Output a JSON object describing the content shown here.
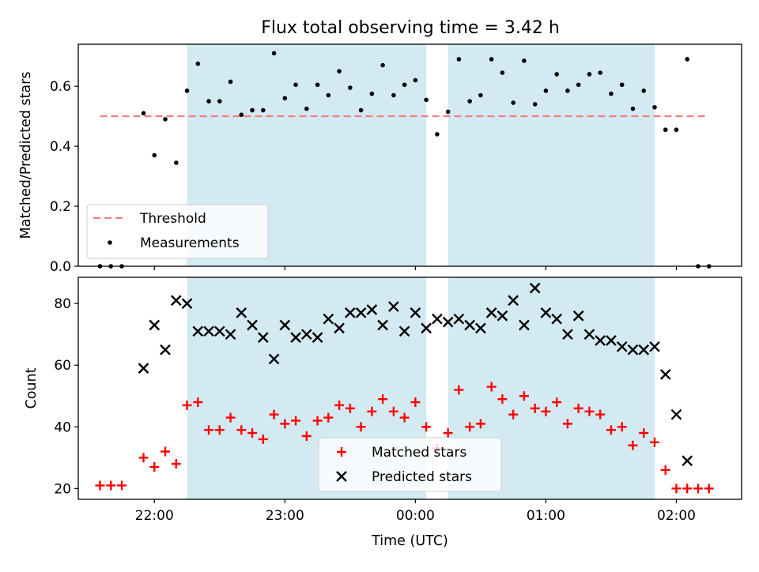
{
  "title": "Flux total observing time = 3.42 h",
  "colors": {
    "shade": "#add8e6",
    "threshold": "#f08080",
    "measurement": "#000000",
    "matched": "#ff0000",
    "predicted": "#000000"
  },
  "chart_data": [
    {
      "type": "scatter",
      "panel": "top",
      "ylabel": "Matched/Predicted stars",
      "xlabel": "",
      "ylim": [
        0,
        0.74
      ],
      "xlim": [
        "21:25",
        "02:30"
      ],
      "yticks": [
        0.0,
        0.2,
        0.4,
        0.6
      ],
      "ytick_labels": [
        "0.0",
        "0.2",
        "0.4",
        "0.6"
      ],
      "shaded_intervals": [
        [
          "22:15",
          "00:05"
        ],
        [
          "00:15",
          "01:50"
        ]
      ],
      "threshold": {
        "name": "Threshold",
        "value": 0.5,
        "x": [
          "21:35",
          "02:15"
        ],
        "style": "dashed"
      },
      "legend": {
        "position": "lower-left",
        "entries": [
          "Threshold",
          "Measurements"
        ]
      },
      "series": [
        {
          "name": "Measurements",
          "marker": "dot",
          "points": [
            [
              "21:35",
              0.0
            ],
            [
              "21:40",
              0.0
            ],
            [
              "21:45",
              0.0
            ],
            [
              "21:55",
              0.51
            ],
            [
              "22:00",
              0.37
            ],
            [
              "22:05",
              0.49
            ],
            [
              "22:10",
              0.345
            ],
            [
              "22:15",
              0.585
            ],
            [
              "22:20",
              0.675
            ],
            [
              "22:25",
              0.55
            ],
            [
              "22:30",
              0.55
            ],
            [
              "22:35",
              0.615
            ],
            [
              "22:40",
              0.505
            ],
            [
              "22:45",
              0.52
            ],
            [
              "22:50",
              0.52
            ],
            [
              "22:55",
              0.71
            ],
            [
              "23:00",
              0.56
            ],
            [
              "23:05",
              0.605
            ],
            [
              "23:10",
              0.525
            ],
            [
              "23:15",
              0.605
            ],
            [
              "23:20",
              0.57
            ],
            [
              "23:25",
              0.65
            ],
            [
              "23:30",
              0.595
            ],
            [
              "23:35",
              0.52
            ],
            [
              "23:40",
              0.575
            ],
            [
              "23:45",
              0.67
            ],
            [
              "23:50",
              0.57
            ],
            [
              "23:55",
              0.605
            ],
            [
              "00:00",
              0.62
            ],
            [
              "00:05",
              0.555
            ],
            [
              "00:10",
              0.44
            ],
            [
              "00:15",
              0.515
            ],
            [
              "00:20",
              0.69
            ],
            [
              "00:25",
              0.55
            ],
            [
              "00:30",
              0.57
            ],
            [
              "00:35",
              0.69
            ],
            [
              "00:40",
              0.645
            ],
            [
              "00:45",
              0.545
            ],
            [
              "00:50",
              0.685
            ],
            [
              "00:55",
              0.54
            ],
            [
              "01:00",
              0.585
            ],
            [
              "01:05",
              0.64
            ],
            [
              "01:10",
              0.585
            ],
            [
              "01:15",
              0.605
            ],
            [
              "01:20",
              0.64
            ],
            [
              "01:25",
              0.645
            ],
            [
              "01:30",
              0.575
            ],
            [
              "01:35",
              0.605
            ],
            [
              "01:40",
              0.525
            ],
            [
              "01:45",
              0.585
            ],
            [
              "01:50",
              0.53
            ],
            [
              "01:55",
              0.455
            ],
            [
              "02:00",
              0.455
            ],
            [
              "02:05",
              0.69
            ],
            [
              "02:10",
              0.0
            ],
            [
              "02:15",
              0.0
            ]
          ]
        }
      ]
    },
    {
      "type": "scatter",
      "panel": "bottom",
      "ylabel": "Count",
      "xlabel": "Time (UTC)",
      "ylim": [
        16.5,
        88.5
      ],
      "xlim": [
        "21:25",
        "02:30"
      ],
      "yticks": [
        20,
        40,
        60,
        80
      ],
      "ytick_labels": [
        "20",
        "40",
        "60",
        "80"
      ],
      "xticks": [
        "22:00",
        "23:00",
        "00:00",
        "01:00",
        "02:00"
      ],
      "xtick_labels": [
        "22:00",
        "23:00",
        "00:00",
        "01:00",
        "02:00"
      ],
      "shaded_intervals": [
        [
          "22:15",
          "00:05"
        ],
        [
          "00:15",
          "01:50"
        ]
      ],
      "legend": {
        "position": "lower-center",
        "entries": [
          "Matched stars",
          "Predicted stars"
        ]
      },
      "series": [
        {
          "name": "Matched stars",
          "marker": "plus",
          "points": [
            [
              "21:35",
              21
            ],
            [
              "21:40",
              21
            ],
            [
              "21:45",
              21
            ],
            [
              "21:55",
              30
            ],
            [
              "22:00",
              27
            ],
            [
              "22:05",
              32
            ],
            [
              "22:10",
              28
            ],
            [
              "22:15",
              47
            ],
            [
              "22:20",
              48
            ],
            [
              "22:25",
              39
            ],
            [
              "22:30",
              39
            ],
            [
              "22:35",
              43
            ],
            [
              "22:40",
              39
            ],
            [
              "22:45",
              38
            ],
            [
              "22:50",
              36
            ],
            [
              "22:55",
              44
            ],
            [
              "23:00",
              41
            ],
            [
              "23:05",
              42
            ],
            [
              "23:10",
              37
            ],
            [
              "23:15",
              42
            ],
            [
              "23:20",
              43
            ],
            [
              "23:25",
              47
            ],
            [
              "23:30",
              46
            ],
            [
              "23:35",
              40
            ],
            [
              "23:40",
              45
            ],
            [
              "23:45",
              49
            ],
            [
              "23:50",
              45
            ],
            [
              "23:55",
              43
            ],
            [
              "00:00",
              48
            ],
            [
              "00:05",
              40
            ],
            [
              "00:10",
              33
            ],
            [
              "00:15",
              38
            ],
            [
              "00:20",
              52
            ],
            [
              "00:25",
              40
            ],
            [
              "00:30",
              41
            ],
            [
              "00:35",
              53
            ],
            [
              "00:40",
              49
            ],
            [
              "00:45",
              44
            ],
            [
              "00:50",
              50
            ],
            [
              "00:55",
              46
            ],
            [
              "01:00",
              45
            ],
            [
              "01:05",
              48
            ],
            [
              "01:10",
              41
            ],
            [
              "01:15",
              46
            ],
            [
              "01:20",
              45
            ],
            [
              "01:25",
              44
            ],
            [
              "01:30",
              39
            ],
            [
              "01:35",
              40
            ],
            [
              "01:40",
              34
            ],
            [
              "01:45",
              38
            ],
            [
              "01:50",
              35
            ],
            [
              "01:55",
              26
            ],
            [
              "02:00",
              20
            ],
            [
              "02:05",
              20
            ],
            [
              "02:10",
              20
            ],
            [
              "02:15",
              20
            ]
          ]
        },
        {
          "name": "Predicted stars",
          "marker": "x",
          "points": [
            [
              "21:55",
              59
            ],
            [
              "22:00",
              73
            ],
            [
              "22:05",
              65
            ],
            [
              "22:10",
              81
            ],
            [
              "22:15",
              80
            ],
            [
              "22:20",
              71
            ],
            [
              "22:25",
              71
            ],
            [
              "22:30",
              71
            ],
            [
              "22:35",
              70
            ],
            [
              "22:40",
              77
            ],
            [
              "22:45",
              73
            ],
            [
              "22:50",
              69
            ],
            [
              "22:55",
              62
            ],
            [
              "23:00",
              73
            ],
            [
              "23:05",
              69
            ],
            [
              "23:10",
              70
            ],
            [
              "23:15",
              69
            ],
            [
              "23:20",
              75
            ],
            [
              "23:25",
              72
            ],
            [
              "23:30",
              77
            ],
            [
              "23:35",
              77
            ],
            [
              "23:40",
              78
            ],
            [
              "23:45",
              73
            ],
            [
              "23:50",
              79
            ],
            [
              "23:55",
              71
            ],
            [
              "00:00",
              77
            ],
            [
              "00:05",
              72
            ],
            [
              "00:10",
              75
            ],
            [
              "00:15",
              74
            ],
            [
              "00:20",
              75
            ],
            [
              "00:25",
              73
            ],
            [
              "00:30",
              72
            ],
            [
              "00:35",
              77
            ],
            [
              "00:40",
              76
            ],
            [
              "00:45",
              81
            ],
            [
              "00:50",
              73
            ],
            [
              "00:55",
              85
            ],
            [
              "01:00",
              77
            ],
            [
              "01:05",
              75
            ],
            [
              "01:10",
              70
            ],
            [
              "01:15",
              76
            ],
            [
              "01:20",
              70
            ],
            [
              "01:25",
              68
            ],
            [
              "01:30",
              68
            ],
            [
              "01:35",
              66
            ],
            [
              "01:40",
              65
            ],
            [
              "01:45",
              65
            ],
            [
              "01:50",
              66
            ],
            [
              "01:55",
              57
            ],
            [
              "02:00",
              44
            ],
            [
              "02:05",
              29
            ]
          ]
        }
      ]
    }
  ]
}
